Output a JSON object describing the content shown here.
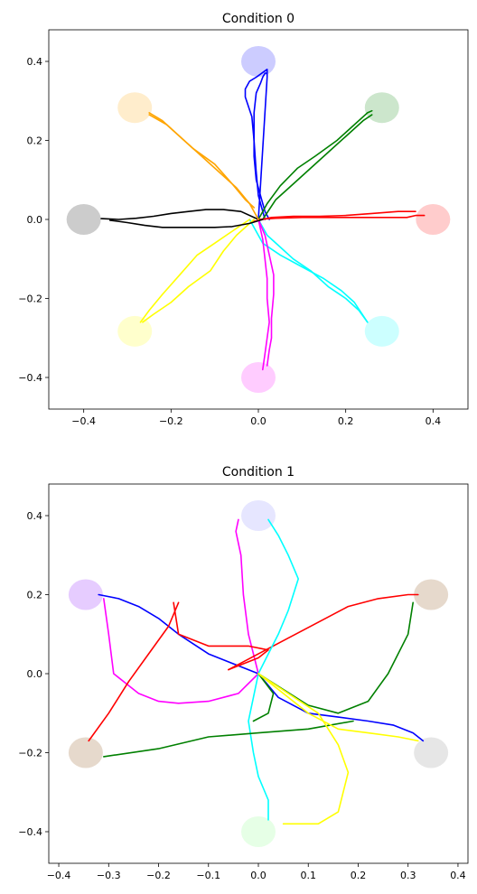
{
  "chart_data": [
    {
      "type": "line",
      "title": "Condition 0",
      "xlabel": "",
      "ylabel": "",
      "xlim": [
        -0.48,
        0.48
      ],
      "ylim": [
        -0.48,
        0.48
      ],
      "xticks": [
        -0.4,
        -0.2,
        0.0,
        0.2,
        0.4
      ],
      "xtick_labels": [
        "−0.4",
        "−0.2",
        "0.0",
        "0.2",
        "0.4"
      ],
      "yticks": [
        -0.4,
        -0.2,
        0.0,
        0.2,
        0.4
      ],
      "ytick_labels": [
        "−0.4",
        "−0.2",
        "0.0",
        "0.2",
        "0.4"
      ],
      "grid": false,
      "targets": [
        {
          "x": 0.0,
          "y": 0.4,
          "color": "#ccccff"
        },
        {
          "x": 0.283,
          "y": 0.283,
          "color": "#cce6cc"
        },
        {
          "x": 0.4,
          "y": 0.0,
          "color": "#ffcccc"
        },
        {
          "x": 0.283,
          "y": -0.283,
          "color": "#ccffff"
        },
        {
          "x": 0.0,
          "y": -0.4,
          "color": "#ffccff"
        },
        {
          "x": -0.283,
          "y": -0.283,
          "color": "#ffffcc"
        },
        {
          "x": -0.4,
          "y": 0.0,
          "color": "#cccccc"
        },
        {
          "x": -0.283,
          "y": 0.283,
          "color": "#ffedcc"
        }
      ],
      "series": [
        {
          "color": "#0000ff",
          "x": [
            0.015,
            0.0,
            -0.005,
            -0.01,
            -0.015,
            -0.03,
            -0.03,
            -0.02,
            -0.005,
            0.02,
            0.02,
            0.0
          ],
          "y": [
            0.0,
            0.06,
            0.12,
            0.2,
            0.26,
            0.31,
            0.33,
            0.35,
            0.36,
            0.38,
            0.36,
            0.0
          ]
        },
        {
          "color": "#0000ff",
          "x": [
            0.025,
            0.015,
            0.005,
            -0.005,
            -0.01,
            -0.01,
            -0.01,
            -0.005,
            0.005,
            0.01,
            0.015,
            0.02
          ],
          "y": [
            0.0,
            0.02,
            0.06,
            0.1,
            0.16,
            0.22,
            0.27,
            0.32,
            0.345,
            0.36,
            0.37,
            0.37
          ]
        },
        {
          "color": "#008000",
          "x": [
            0.0,
            0.02,
            0.05,
            0.09,
            0.13,
            0.18,
            0.22,
            0.25,
            0.26
          ],
          "y": [
            0.0,
            0.04,
            0.085,
            0.13,
            0.16,
            0.2,
            0.24,
            0.27,
            0.275
          ]
        },
        {
          "color": "#008000",
          "x": [
            0.01,
            0.04,
            0.08,
            0.12,
            0.16,
            0.2,
            0.24,
            0.26
          ],
          "y": [
            0.0,
            0.05,
            0.09,
            0.13,
            0.17,
            0.21,
            0.25,
            0.265
          ]
        },
        {
          "color": "#ff0000",
          "x": [
            0.0,
            0.04,
            0.1,
            0.16,
            0.22,
            0.28,
            0.34,
            0.36,
            0.38
          ],
          "y": [
            0.0,
            0.003,
            0.005,
            0.005,
            0.005,
            0.005,
            0.005,
            0.01,
            0.01
          ]
        },
        {
          "color": "#ff0000",
          "x": [
            -0.01,
            0.03,
            0.08,
            0.14,
            0.2,
            0.26,
            0.32,
            0.36
          ],
          "y": [
            -0.005,
            0.005,
            0.008,
            0.008,
            0.01,
            0.015,
            0.02,
            0.02
          ]
        },
        {
          "color": "#00ffff",
          "x": [
            0.0,
            0.02,
            0.05,
            0.08,
            0.12,
            0.16,
            0.2,
            0.23,
            0.25
          ],
          "y": [
            0.0,
            -0.04,
            -0.07,
            -0.1,
            -0.13,
            -0.17,
            -0.2,
            -0.23,
            -0.26
          ]
        },
        {
          "color": "#00ffff",
          "x": [
            -0.02,
            0.01,
            0.05,
            0.1,
            0.15,
            0.19,
            0.22,
            0.25
          ],
          "y": [
            0.0,
            -0.06,
            -0.09,
            -0.12,
            -0.15,
            -0.18,
            -0.21,
            -0.26
          ]
        },
        {
          "color": "#ff00ff",
          "x": [
            0.0,
            0.01,
            0.015,
            0.02,
            0.02,
            0.025,
            0.02,
            0.015,
            0.01
          ],
          "y": [
            0.0,
            -0.05,
            -0.1,
            -0.15,
            -0.2,
            -0.26,
            -0.3,
            -0.34,
            -0.38
          ]
        },
        {
          "color": "#ff00ff",
          "x": [
            0.0,
            0.015,
            0.025,
            0.035,
            0.035,
            0.03,
            0.03,
            0.025,
            0.02
          ],
          "y": [
            0.0,
            -0.04,
            -0.09,
            -0.14,
            -0.19,
            -0.25,
            -0.3,
            -0.33,
            -0.37
          ]
        },
        {
          "color": "#ffff00",
          "x": [
            -0.02,
            -0.06,
            -0.1,
            -0.14,
            -0.18,
            -0.22,
            -0.25,
            -0.27
          ],
          "y": [
            0.0,
            -0.03,
            -0.06,
            -0.09,
            -0.14,
            -0.19,
            -0.23,
            -0.26
          ]
        },
        {
          "color": "#ffff00",
          "x": [
            -0.01,
            -0.05,
            -0.08,
            -0.11,
            -0.16,
            -0.2,
            -0.24,
            -0.265
          ],
          "y": [
            0.0,
            -0.04,
            -0.08,
            -0.13,
            -0.17,
            -0.21,
            -0.24,
            -0.26
          ]
        },
        {
          "color": "#000000",
          "x": [
            0.0,
            -0.04,
            -0.08,
            -0.12,
            -0.16,
            -0.2,
            -0.24,
            -0.28,
            -0.32,
            -0.36
          ],
          "y": [
            0.0,
            0.02,
            0.025,
            0.025,
            0.02,
            0.015,
            0.008,
            0.003,
            0.0,
            0.002
          ]
        },
        {
          "color": "#000000",
          "x": [
            0.01,
            -0.02,
            -0.06,
            -0.1,
            -0.14,
            -0.18,
            -0.22,
            -0.26,
            -0.3,
            -0.34
          ],
          "y": [
            0.0,
            -0.01,
            -0.018,
            -0.02,
            -0.02,
            -0.02,
            -0.02,
            -0.015,
            -0.008,
            -0.002
          ]
        },
        {
          "color": "#ffa500",
          "x": [
            0.0,
            -0.02,
            -0.05,
            -0.09,
            -0.13,
            -0.17,
            -0.21,
            -0.25
          ],
          "y": [
            0.0,
            0.04,
            0.08,
            0.12,
            0.16,
            0.2,
            0.24,
            0.265
          ]
        },
        {
          "color": "#ffa500",
          "x": [
            -0.01,
            -0.03,
            -0.06,
            -0.1,
            -0.15,
            -0.19,
            -0.22,
            -0.25
          ],
          "y": [
            0.03,
            0.05,
            0.09,
            0.14,
            0.18,
            0.22,
            0.25,
            0.27
          ]
        }
      ]
    },
    {
      "type": "line",
      "title": "Condition 1",
      "xlabel": "",
      "ylabel": "",
      "xlim": [
        -0.42,
        0.42
      ],
      "ylim": [
        -0.48,
        0.48
      ],
      "xticks": [
        -0.4,
        -0.3,
        -0.2,
        -0.1,
        0.0,
        0.1,
        0.2,
        0.3,
        0.4
      ],
      "xtick_labels": [
        "−0.4",
        "−0.3",
        "−0.2",
        "−0.1",
        "0.0",
        "0.1",
        "0.2",
        "0.3",
        "0.4"
      ],
      "yticks": [
        -0.4,
        -0.2,
        0.0,
        0.2,
        0.4
      ],
      "ytick_labels": [
        "−0.4",
        "−0.2",
        "0.0",
        "0.2",
        "0.4"
      ],
      "grid": false,
      "targets": [
        {
          "x": 0.0,
          "y": 0.4,
          "color": "#e6e6ff"
        },
        {
          "x": 0.346,
          "y": 0.2,
          "color": "#e6d9cc"
        },
        {
          "x": 0.346,
          "y": -0.2,
          "color": "#e6e6e6"
        },
        {
          "x": 0.0,
          "y": -0.4,
          "color": "#e6ffe6"
        },
        {
          "x": -0.346,
          "y": -0.2,
          "color": "#e6d9cc"
        },
        {
          "x": -0.346,
          "y": 0.2,
          "color": "#e6ccff"
        }
      ],
      "series": [
        {
          "color": "#0000ff",
          "x": [
            0.0,
            -0.04,
            -0.1,
            -0.16,
            -0.2,
            -0.24,
            -0.28,
            -0.32
          ],
          "y": [
            0.0,
            0.02,
            0.05,
            0.1,
            0.14,
            0.17,
            0.19,
            0.2
          ]
        },
        {
          "color": "#0000ff",
          "x": [
            0.0,
            0.04,
            0.1,
            0.16,
            0.22,
            0.27,
            0.31,
            0.33
          ],
          "y": [
            0.0,
            -0.06,
            -0.1,
            -0.11,
            -0.12,
            -0.13,
            -0.15,
            -0.17
          ]
        },
        {
          "color": "#ff00ff",
          "x": [
            0.0,
            -0.04,
            -0.1,
            -0.16,
            -0.2,
            -0.24,
            -0.29,
            -0.3,
            -0.31
          ],
          "y": [
            0.0,
            -0.05,
            -0.07,
            -0.075,
            -0.07,
            -0.05,
            0.0,
            0.1,
            0.19
          ]
        },
        {
          "color": "#ff00ff",
          "x": [
            0.0,
            -0.01,
            -0.02,
            -0.03,
            -0.035,
            -0.045,
            -0.04
          ],
          "y": [
            0.0,
            0.05,
            0.1,
            0.2,
            0.3,
            0.36,
            0.39
          ]
        },
        {
          "color": "#ff0000",
          "x": [
            -0.06,
            0.0,
            0.02,
            -0.02,
            -0.06,
            -0.1,
            -0.16,
            -0.17
          ],
          "y": [
            0.01,
            0.04,
            0.06,
            0.07,
            0.07,
            0.07,
            0.1,
            0.18
          ]
        },
        {
          "color": "#ff0000",
          "x": [
            -0.34,
            -0.3,
            -0.26,
            -0.22,
            -0.18,
            -0.16
          ],
          "y": [
            -0.17,
            -0.1,
            -0.02,
            0.05,
            0.12,
            0.18
          ]
        },
        {
          "color": "#ff0000",
          "x": [
            -0.06,
            0.0,
            0.06,
            0.12,
            0.18,
            0.24,
            0.3,
            0.32
          ],
          "y": [
            0.01,
            0.05,
            0.09,
            0.13,
            0.17,
            0.19,
            0.2,
            0.2
          ]
        },
        {
          "color": "#00ffff",
          "x": [
            0.0,
            0.02,
            0.04,
            0.06,
            0.08,
            0.06,
            0.04,
            0.02
          ],
          "y": [
            0.0,
            0.05,
            0.1,
            0.16,
            0.24,
            0.3,
            0.35,
            0.39
          ]
        },
        {
          "color": "#00ffff",
          "x": [
            0.0,
            -0.01,
            -0.02,
            -0.01,
            0.0,
            0.02,
            0.02
          ],
          "y": [
            0.0,
            -0.06,
            -0.12,
            -0.2,
            -0.26,
            -0.32,
            -0.37
          ]
        },
        {
          "color": "#008000",
          "x": [
            0.0,
            0.05,
            0.1,
            0.16,
            0.22,
            0.26,
            0.3,
            0.31
          ],
          "y": [
            0.0,
            -0.04,
            -0.08,
            -0.1,
            -0.07,
            0.0,
            0.1,
            0.18
          ]
        },
        {
          "color": "#008000",
          "x": [
            -0.31,
            -0.2,
            -0.1,
            0.0,
            0.1,
            0.19
          ],
          "y": [
            -0.21,
            -0.19,
            -0.16,
            -0.15,
            -0.14,
            -0.12
          ]
        },
        {
          "color": "#008000",
          "x": [
            0.0,
            0.03,
            0.02,
            -0.01
          ],
          "y": [
            0.0,
            -0.05,
            -0.1,
            -0.12
          ]
        },
        {
          "color": "#ffff00",
          "x": [
            0.0,
            0.05,
            0.1,
            0.16,
            0.22,
            0.28,
            0.32
          ],
          "y": [
            0.0,
            -0.05,
            -0.1,
            -0.14,
            -0.15,
            -0.16,
            -0.17
          ]
        },
        {
          "color": "#ffff00",
          "x": [
            0.0,
            0.06,
            0.12,
            0.16,
            0.18,
            0.16,
            0.12,
            0.05
          ],
          "y": [
            0.0,
            -0.05,
            -0.1,
            -0.18,
            -0.25,
            -0.35,
            -0.38,
            -0.38
          ]
        }
      ]
    }
  ]
}
